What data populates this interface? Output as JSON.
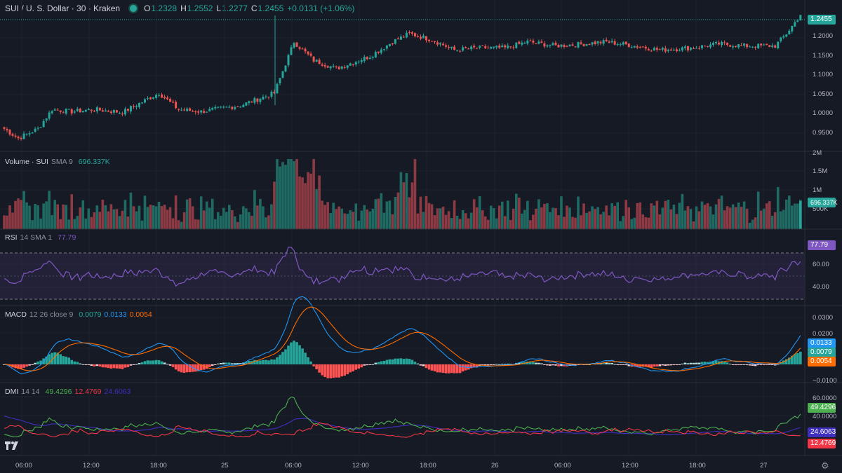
{
  "header": {
    "symbol": "SUI / U. S. Dollar · 30 · Kraken",
    "o_key": "O",
    "o_val": "1.2328",
    "h_key": "H",
    "h_val": "1.2552",
    "l_key": "L",
    "l_val": "1.2277",
    "c_key": "C",
    "c_val": "1.2455",
    "change": "+0.0131 (+1.06%)"
  },
  "price_axis": {
    "ticks": [
      "1.2000",
      "1.1500",
      "1.1000",
      "1.0500",
      "1.0000",
      "0.9500"
    ],
    "last_price": "1.2455"
  },
  "volume": {
    "label": "Volume · SUI",
    "params": "SMA 9",
    "value": "696.337K",
    "axis_ticks": [
      "2M",
      "1.5M",
      "1M",
      "500K"
    ]
  },
  "rsi": {
    "label": "RSI",
    "params": "14 SMA 1",
    "value": "77.79",
    "axis_ticks": [
      "60.00",
      "40.00"
    ]
  },
  "macd": {
    "label": "MACD",
    "params": "12 26 close 9",
    "hist": "0.0079",
    "macd": "0.0133",
    "signal": "0.0054",
    "axis_ticks": [
      "0.0300",
      "0.0200",
      "0.0100",
      "−0.0100"
    ]
  },
  "dmi": {
    "label": "DMI",
    "params": "14 14",
    "plus_di": "49.4296",
    "minus_di": "12.4769",
    "adx": "24.6063",
    "axis_ticks": [
      "60.0000",
      "40.0000"
    ]
  },
  "time_axis": [
    "06:00",
    "12:00",
    "18:00",
    "25",
    "06:00",
    "12:00",
    "18:00",
    "26",
    "06:00",
    "12:00",
    "18:00",
    "27"
  ],
  "colors": {
    "up": "#26a69a",
    "down": "#ef5350",
    "rsi": "#7e57c2",
    "macd": "#2196f3",
    "signal": "#ff6d00",
    "plus_di": "#4caf50",
    "minus_di": "#f23645",
    "adx": "#3f2fbf"
  },
  "icons": {
    "logo": "tradingview-logo",
    "settings": "gear-icon"
  },
  "chart_data": {
    "type": "candlestick",
    "interval": "30",
    "anchors": [
      [
        0,
        0.968
      ],
      [
        5,
        0.945
      ],
      [
        12,
        0.968
      ],
      [
        17,
        1.015
      ],
      [
        24,
        1.01
      ],
      [
        32,
        1.015
      ],
      [
        42,
        1.008
      ],
      [
        55,
        1.055
      ],
      [
        62,
        1.015
      ],
      [
        70,
        1.01
      ],
      [
        84,
        1.025
      ],
      [
        96,
        1.055
      ],
      [
        103,
        1.18
      ],
      [
        110,
        1.135
      ],
      [
        118,
        1.115
      ],
      [
        130,
        1.145
      ],
      [
        138,
        1.18
      ],
      [
        144,
        1.2
      ],
      [
        152,
        1.185
      ],
      [
        160,
        1.16
      ],
      [
        168,
        1.165
      ],
      [
        178,
        1.165
      ],
      [
        186,
        1.18
      ],
      [
        196,
        1.17
      ],
      [
        206,
        1.175
      ],
      [
        214,
        1.18
      ],
      [
        224,
        1.17
      ],
      [
        233,
        1.16
      ],
      [
        244,
        1.165
      ],
      [
        254,
        1.175
      ],
      [
        264,
        1.17
      ],
      [
        274,
        1.17
      ],
      [
        278,
        1.2
      ],
      [
        283,
        1.2455
      ]
    ],
    "last_close": 1.2455,
    "ylim": [
      0.93,
      1.27
    ]
  }
}
